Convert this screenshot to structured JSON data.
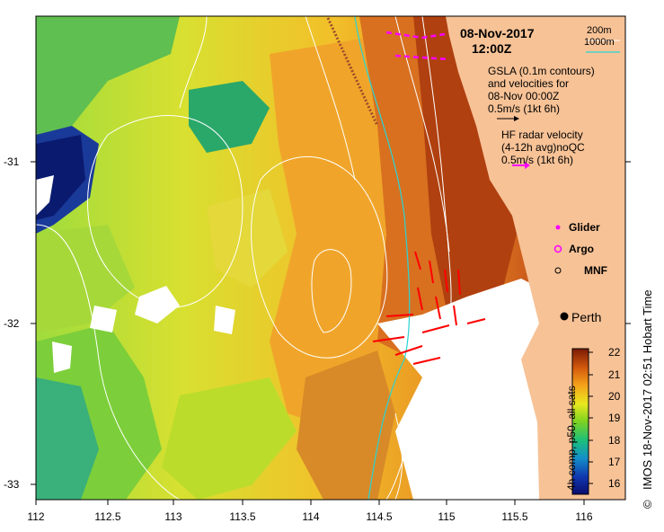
{
  "map": {
    "date": "08-Nov-2017",
    "time": "12:00Z",
    "city": "Perth",
    "footer": "IMOS 18-Nov-2017 02:51 Hobart Time",
    "copyright": "©"
  },
  "legend": {
    "contour_200": "200m",
    "contour_1000": "1000m",
    "gsla_line1": "GSLA (0.1m contours)",
    "gsla_line2": "and velocities for",
    "gsla_line3": "08-Nov 00:00Z",
    "gsla_line4": "0.5m/s (1kt 6h)",
    "hf_line1": "HF radar velocity",
    "hf_line2": "(4-12h avg)noQC",
    "hf_line3": "0.5m/s (1kt 6h)",
    "glider": "Glider",
    "argo": "Argo",
    "mnf": "MNF"
  },
  "axes": {
    "x_ticks": [
      "112",
      "112.5",
      "113",
      "113.5",
      "114",
      "114.5",
      "115",
      "115.5",
      "116"
    ],
    "y_ticks": [
      "-31",
      "-32",
      "-33"
    ]
  },
  "colorbar": {
    "label": "4h comp, p50, all sats",
    "ticks": [
      "22",
      "21",
      "20",
      "19",
      "18",
      "17",
      "16"
    ],
    "range": [
      15.6,
      22.0
    ]
  },
  "colors": {
    "land": "#f7c296",
    "hf_arrow": "#ff0000",
    "glider": "#ff00ff",
    "contour_1000": "#2ad4d4"
  }
}
